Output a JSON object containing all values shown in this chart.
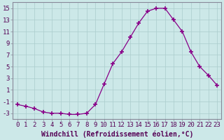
{
  "x": [
    0,
    1,
    2,
    3,
    4,
    5,
    6,
    7,
    8,
    9,
    10,
    11,
    12,
    13,
    14,
    15,
    16,
    17,
    18,
    19,
    20,
    21,
    22,
    23
  ],
  "y": [
    -1.5,
    -1.8,
    -2.2,
    -2.8,
    -3.0,
    -3.0,
    -3.2,
    -3.2,
    -3.0,
    -1.5,
    2.0,
    5.5,
    7.5,
    10.0,
    12.5,
    14.5,
    15.0,
    15.0,
    13.0,
    11.0,
    7.5,
    5.0,
    3.5,
    1.8
  ],
  "line_color": "#880088",
  "marker": "+",
  "marker_size": 4,
  "bg_color": "#cce8e8",
  "grid_color": "#aacccc",
  "xlabel": "Windchill (Refroidissement éolien,°C)",
  "ylabel_ticks": [
    -3,
    -1,
    1,
    3,
    5,
    7,
    9,
    11,
    13,
    15
  ],
  "xlim": [
    -0.5,
    23.5
  ],
  "ylim": [
    -4,
    16
  ],
  "xlabel_fontsize": 7,
  "tick_fontsize": 6.5,
  "lw": 0.9
}
